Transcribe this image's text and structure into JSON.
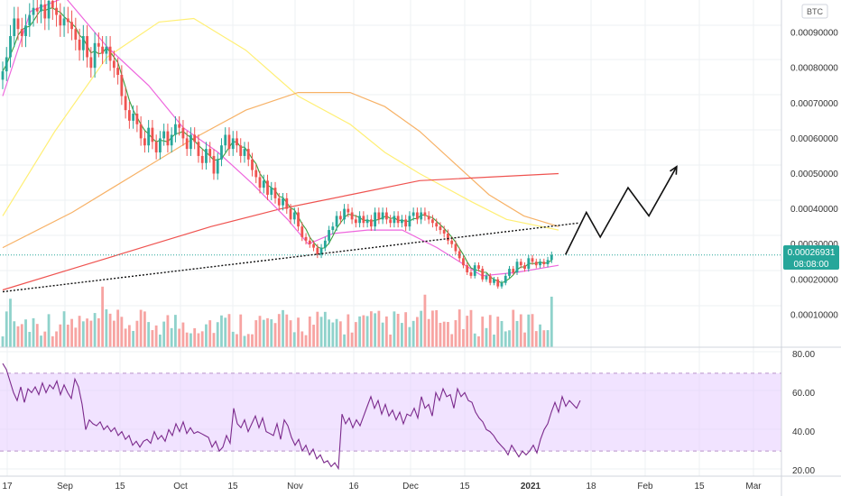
{
  "currency_button": "BTC",
  "price_badge": {
    "price": "0.00026931",
    "countdown": "08:08:00",
    "color": "#26a69a"
  },
  "colors": {
    "up": "#26a69a",
    "down": "#ef5350",
    "vol_up": "#8fd2cb",
    "vol_down": "#f7a4a2",
    "ma_short": "#3d9f3d",
    "ma_mid": "#ee66dd",
    "ma_yellow": "#ffef75",
    "ma_orange": "#f7b267",
    "ma_red": "#ef5350",
    "rsi_line": "#7b2a8c",
    "rsi_band": "#e6ccff",
    "grid": "#eef0f3"
  },
  "x_axis": {
    "labels": [
      "17",
      "Sep",
      "15",
      "Oct",
      "15",
      "Nov",
      "16",
      "Dec",
      "15",
      "2021",
      "18",
      "Feb",
      "15",
      "Mar"
    ]
  },
  "price_axis": {
    "labels": [
      "0.00090000",
      "0.00080000",
      "0.00070000",
      "0.00060000",
      "0.00050000",
      "0.00040000",
      "0.00030000",
      "0.00020000",
      "0.00010000"
    ]
  },
  "rsi_axis": {
    "labels": [
      "80.00",
      "60.00",
      "40.00",
      "20.00"
    ]
  },
  "chart_data": {
    "type": "candlestick",
    "symbol_quote": "BTC",
    "ylim": [
      0.0,
      0.001
    ],
    "rsi": {
      "ylim": [
        18,
        82
      ],
      "band": [
        30,
        70
      ],
      "values": [
        75,
        72,
        66,
        60,
        56,
        63,
        55,
        62,
        60,
        63,
        59,
        65,
        60,
        64,
        62,
        66,
        59,
        64,
        60,
        57,
        67,
        63,
        54,
        41,
        46,
        44,
        43,
        45,
        41,
        43,
        40,
        42,
        38,
        40,
        36,
        38,
        33,
        35,
        32,
        35,
        36,
        34,
        40,
        36,
        38,
        35,
        41,
        38,
        44,
        40,
        45,
        39,
        42,
        39,
        40,
        39,
        38,
        37,
        32,
        35,
        30,
        32,
        38,
        34,
        52,
        44,
        42,
        46,
        40,
        44,
        48,
        42,
        47,
        40,
        39,
        38,
        44,
        36,
        46,
        43,
        37,
        33,
        36,
        30,
        33,
        28,
        31,
        26,
        28,
        24,
        25,
        22,
        24,
        21,
        49,
        44,
        47,
        42,
        46,
        43,
        48,
        53,
        58,
        52,
        56,
        49,
        54,
        48,
        51,
        46,
        50,
        44,
        49,
        48,
        52,
        47,
        58,
        52,
        54,
        48,
        60,
        56,
        62,
        58,
        59,
        52,
        62,
        58,
        60,
        56,
        55,
        50,
        47,
        45,
        41,
        40,
        38,
        35,
        33,
        31,
        28,
        33,
        30,
        27,
        30,
        28,
        30,
        33,
        29,
        36,
        41,
        44,
        50,
        55,
        50,
        58,
        53,
        56,
        54,
        52,
        56
      ]
    },
    "moving_averages": [
      {
        "color": "#ffef75",
        "points": [
          [
            0,
            0.00038
          ],
          [
            15,
            0.00062
          ],
          [
            30,
            0.00083
          ],
          [
            45,
            0.00093
          ],
          [
            55,
            0.00094
          ],
          [
            70,
            0.00085
          ],
          [
            85,
            0.00072
          ],
          [
            100,
            0.00064
          ],
          [
            110,
            0.00056
          ],
          [
            120,
            0.0005
          ],
          [
            135,
            0.00042
          ],
          [
            145,
            0.00037
          ],
          [
            160,
            0.00034
          ]
        ]
      },
      {
        "color": "#f7b267",
        "points": [
          [
            0,
            0.00029
          ],
          [
            20,
            0.00039
          ],
          [
            40,
            0.00051
          ],
          [
            55,
            0.0006
          ],
          [
            70,
            0.00068
          ],
          [
            85,
            0.00073
          ],
          [
            100,
            0.00073
          ],
          [
            110,
            0.00069
          ],
          [
            120,
            0.00062
          ],
          [
            130,
            0.00053
          ],
          [
            140,
            0.00044
          ],
          [
            150,
            0.00038
          ],
          [
            160,
            0.00035
          ]
        ]
      },
      {
        "color": "#ef5350",
        "points": [
          [
            0,
            0.00017
          ],
          [
            20,
            0.00023
          ],
          [
            40,
            0.00029
          ],
          [
            60,
            0.00035
          ],
          [
            80,
            0.0004
          ],
          [
            100,
            0.00044
          ],
          [
            120,
            0.00048
          ],
          [
            140,
            0.00049
          ],
          [
            160,
            0.0005
          ]
        ]
      },
      {
        "color": "#ee66dd",
        "points": [
          [
            0,
            0.00072
          ],
          [
            8,
            0.00096
          ],
          [
            18,
            0.001
          ],
          [
            30,
            0.00086
          ],
          [
            42,
            0.00075
          ],
          [
            52,
            0.00063
          ],
          [
            62,
            0.00056
          ],
          [
            72,
            0.00047
          ],
          [
            82,
            0.00037
          ],
          [
            88,
            0.0003
          ],
          [
            95,
            0.00033
          ],
          [
            105,
            0.00034
          ],
          [
            115,
            0.00034
          ],
          [
            125,
            0.00029
          ],
          [
            138,
            0.00021
          ],
          [
            148,
            0.00022
          ],
          [
            160,
            0.00024
          ]
        ]
      }
    ],
    "trendlines": [
      {
        "style": "dotted",
        "points": [
          [
            0,
            0.000165
          ],
          [
            166,
            0.00036
          ]
        ]
      },
      {
        "style": "projection",
        "points": [
          [
            162,
            0.00027
          ],
          [
            168,
            0.00039
          ],
          [
            172,
            0.00032
          ],
          [
            180,
            0.00046
          ],
          [
            186,
            0.00038
          ],
          [
            194,
            0.00052
          ]
        ],
        "arrow": true
      }
    ],
    "current_price": 0.00026931
  }
}
